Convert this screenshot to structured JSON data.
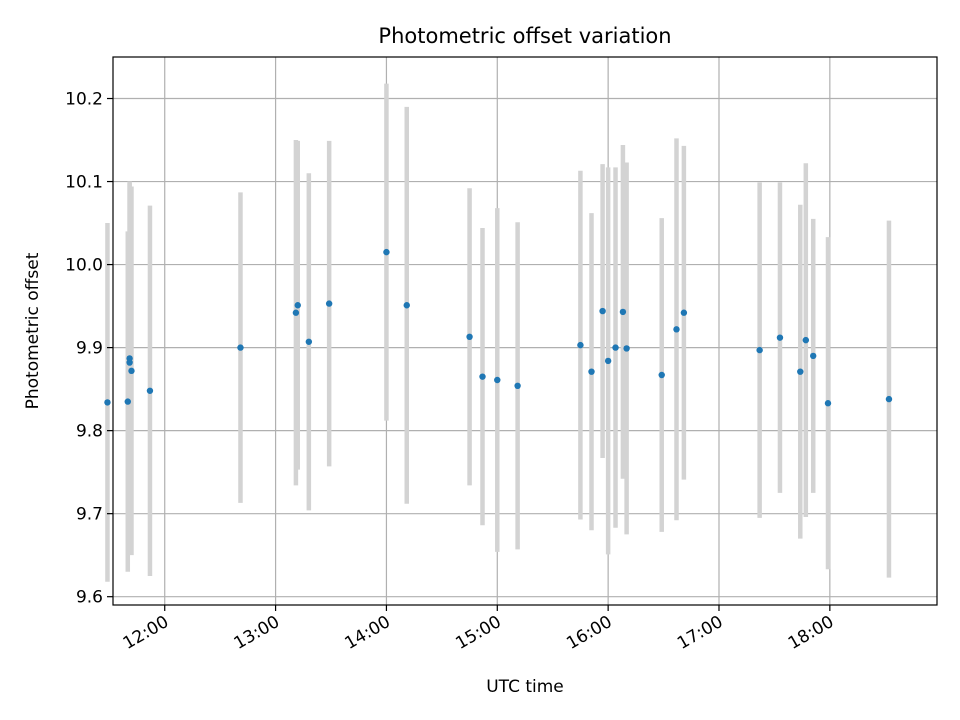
{
  "chart_data": {
    "type": "scatter",
    "title": "Photometric offset variation",
    "xlabel": "UTC time",
    "ylabel": "Photometric offset",
    "x_tick_labels": [
      "12:00",
      "13:00",
      "14:00",
      "15:00",
      "16:00",
      "17:00",
      "18:00"
    ],
    "x_ticks": [
      "12:00",
      "13:00",
      "14:00",
      "15:00",
      "16:00",
      "17:00",
      "18:00"
    ],
    "xlim": [
      "11:32",
      "18:58"
    ],
    "y_tick_labels": [
      "9.6",
      "9.7",
      "9.8",
      "9.9",
      "10.0",
      "10.1",
      "10.2"
    ],
    "y_ticks": [
      9.6,
      9.7,
      9.8,
      9.9,
      10.0,
      10.1,
      10.2
    ],
    "ylim": [
      9.59,
      10.25
    ],
    "grid": true,
    "colors": {
      "point": "#1f77b4",
      "errorbar": "#d3d3d3",
      "grid": "#b0b0b0"
    },
    "series": [
      {
        "points": [
          {
            "x": "11:29",
            "y": 9.834,
            "err": 0.216
          },
          {
            "x": "11:40",
            "y": 9.835,
            "err": 0.205
          },
          {
            "x": "11:41",
            "y": 9.882,
            "err": 0.218
          },
          {
            "x": "11:41",
            "y": 9.887,
            "err": 0.211
          },
          {
            "x": "11:42",
            "y": 9.872,
            "err": 0.222
          },
          {
            "x": "11:52",
            "y": 9.848,
            "err": 0.223
          },
          {
            "x": "12:41",
            "y": 9.9,
            "err": 0.187
          },
          {
            "x": "13:11",
            "y": 9.942,
            "err": 0.208
          },
          {
            "x": "13:12",
            "y": 9.951,
            "err": 0.198
          },
          {
            "x": "13:18",
            "y": 9.907,
            "err": 0.203
          },
          {
            "x": "13:29",
            "y": 9.953,
            "err": 0.196
          },
          {
            "x": "14:00",
            "y": 10.015,
            "err": 0.203
          },
          {
            "x": "14:11",
            "y": 9.951,
            "err": 0.239
          },
          {
            "x": "14:45",
            "y": 9.913,
            "err": 0.179
          },
          {
            "x": "14:52",
            "y": 9.865,
            "err": 0.179
          },
          {
            "x": "15:00",
            "y": 9.861,
            "err": 0.207
          },
          {
            "x": "15:11",
            "y": 9.854,
            "err": 0.197
          },
          {
            "x": "15:45",
            "y": 9.903,
            "err": 0.21
          },
          {
            "x": "15:51",
            "y": 9.871,
            "err": 0.191
          },
          {
            "x": "15:57",
            "y": 9.944,
            "err": 0.177
          },
          {
            "x": "16:00",
            "y": 9.884,
            "err": 0.233
          },
          {
            "x": "16:04",
            "y": 9.9,
            "err": 0.217
          },
          {
            "x": "16:08",
            "y": 9.943,
            "err": 0.201
          },
          {
            "x": "16:10",
            "y": 9.899,
            "err": 0.224
          },
          {
            "x": "16:29",
            "y": 9.867,
            "err": 0.189
          },
          {
            "x": "16:37",
            "y": 9.922,
            "err": 0.23
          },
          {
            "x": "16:41",
            "y": 9.942,
            "err": 0.201
          },
          {
            "x": "17:22",
            "y": 9.897,
            "err": 0.202
          },
          {
            "x": "17:33",
            "y": 9.912,
            "err": 0.187
          },
          {
            "x": "17:44",
            "y": 9.871,
            "err": 0.201
          },
          {
            "x": "17:47",
            "y": 9.909,
            "err": 0.213
          },
          {
            "x": "17:51",
            "y": 9.89,
            "err": 0.165
          },
          {
            "x": "17:59",
            "y": 9.833,
            "err": 0.2
          },
          {
            "x": "18:32",
            "y": 9.838,
            "err": 0.215
          }
        ]
      }
    ]
  }
}
